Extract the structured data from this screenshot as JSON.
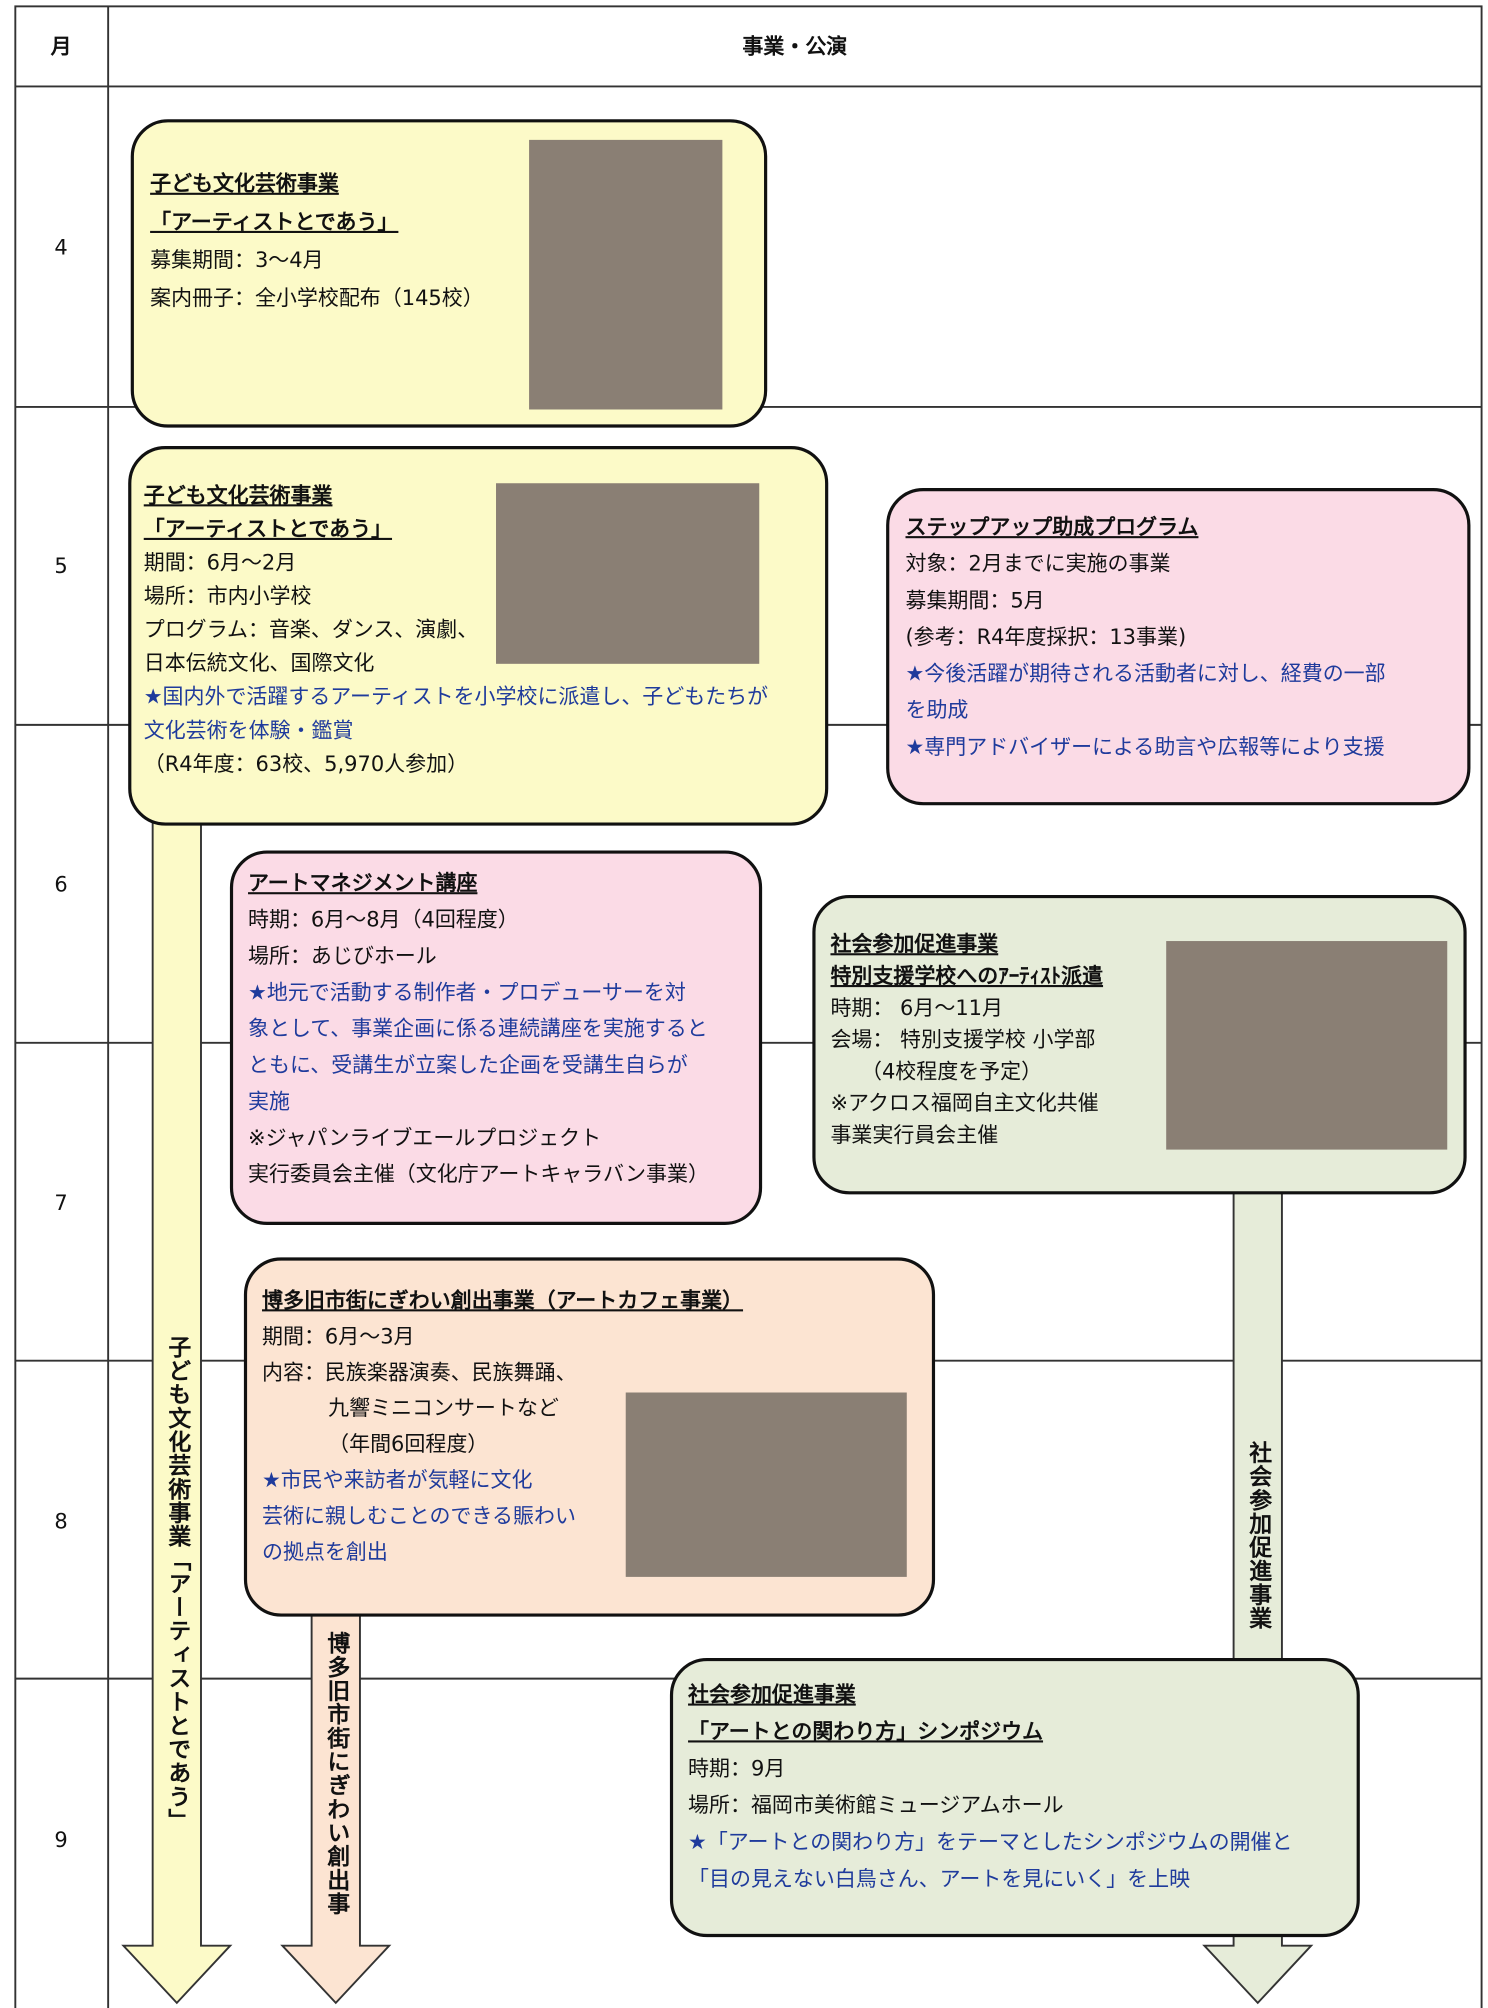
{
  "header": {
    "month": "月",
    "title": "事業・公演"
  },
  "months": [
    "4",
    "5",
    "6",
    "7",
    "8",
    "9"
  ],
  "boxes": [
    {
      "title": [
        "子ども文化芸術事業",
        "「アーティストとであう」"
      ],
      "details": [
        "募集期間：3～4月",
        "案内冊子：全小学校配布（145校）"
      ]
    },
    {
      "title": [
        "子ども文化芸術事業",
        "「アーティストとであう」"
      ],
      "details": [
        "期間：6月～2月",
        "場所：市内小学校",
        "プログラム：音楽、ダンス、演劇、",
        "日本伝統文化、国際文化"
      ],
      "highlight": [
        "★国内外で活躍するアーティストを小学校に派遣し、子どもたちが",
        "文化芸術を体験・鑑賞"
      ],
      "notes": [
        "（R4年度：63校、5,970人参加）"
      ]
    },
    {
      "title": [
        "ステップアップ助成プログラム"
      ],
      "details": [
        "対象：2月までに実施の事業",
        "募集期間：5月",
        "(参考：R4年度採択：13事業)"
      ],
      "highlight": [
        "★今後活躍が期待される活動者に対し、経費の一部",
        "を助成",
        "★専門アドバイザーによる助言や広報等により支援"
      ]
    },
    {
      "title": [
        "アートマネジメント講座"
      ],
      "details": [
        "時期：6月～8月（4回程度）",
        "場所：あじびホール"
      ],
      "highlight": [
        "★地元で活動する制作者・プロデューサーを対",
        "象として、事業企画に係る連続講座を実施すると",
        "ともに、受講生が立案した企画を受講生自らが",
        "実施"
      ],
      "notes": [
        "※ジャパンライブエールプロジェクト",
        "実行委員会主催（文化庁アートキャラバン事業）"
      ]
    },
    {
      "title": [
        "社会参加促進事業",
        "特別支援学校へのｱｰﾃｨｽﾄ派遣"
      ],
      "details": [
        "時期： 6月～11月",
        "会場： 特別支援学校 小学部",
        "（4校程度を予定）",
        "※アクロス福岡自主文化共催",
        "事業実行員会主催"
      ]
    },
    {
      "title": [
        "博多旧市街にぎわい創出事業（アートカフェ事業）"
      ],
      "details": [
        "期間：6月～3月",
        "内容：民族楽器演奏、民族舞踊、",
        "九響ミニコンサートなど",
        "（年間6回程度）"
      ],
      "highlight": [
        "★市民や来訪者が気軽に文化",
        "芸術に親しむことのできる賑わい",
        "の拠点を創出"
      ]
    },
    {
      "title": [
        "社会参加促進事業",
        "「アートとの関わり方」シンポジウム"
      ],
      "details": [
        "時期：9月",
        "場所：福岡市美術館ミュージアムホール"
      ],
      "highlight": [
        "★「アートとの関わり方」をテーマとしたシンポジウムの開催と",
        "「目の見えない白鳥さん、アートを見にいく」を上映"
      ]
    }
  ],
  "arrows": [
    "子ども文化芸術事業「アーティストとであう」",
    "博多旧市街にぎわい創出事",
    "社会参加促進事業"
  ]
}
